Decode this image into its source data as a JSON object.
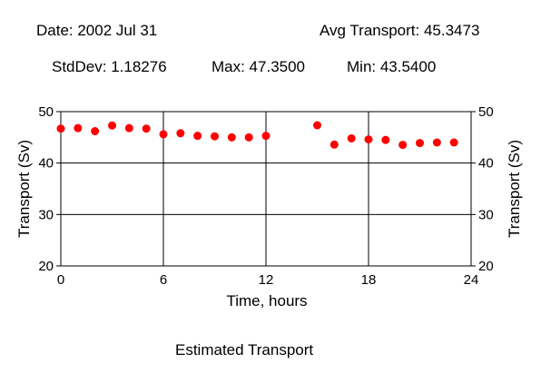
{
  "header": {
    "date": "Date: 2002 Jul 31",
    "avg": "Avg Transport: 45.3473",
    "stddev": "StdDev: 1.18276",
    "max": "Max: 47.3500",
    "min": "Min: 43.5400"
  },
  "footer": {
    "caption": "Estimated Transport"
  },
  "chart_data": {
    "type": "scatter",
    "title": "Estimated Transport",
    "xlabel": "Time, hours",
    "ylabel": "Transport (Sv)",
    "xlim": [
      0,
      24
    ],
    "ylim": [
      20,
      50
    ],
    "xticks": [
      0,
      6,
      12,
      18,
      24
    ],
    "yticks": [
      20,
      30,
      40,
      50
    ],
    "grid": true,
    "marker_color": "#ff0000",
    "x": [
      0,
      1,
      2,
      3,
      4,
      5,
      6,
      7,
      8,
      9,
      10,
      11,
      12,
      15,
      16,
      17,
      18,
      19,
      20,
      21,
      22,
      23
    ],
    "y": [
      46.7,
      46.8,
      46.2,
      47.3,
      46.8,
      46.7,
      45.6,
      45.8,
      45.3,
      45.2,
      45.0,
      45.0,
      45.3,
      47.35,
      43.6,
      44.8,
      44.6,
      44.5,
      43.54,
      43.9,
      44.0,
      44.0
    ]
  }
}
